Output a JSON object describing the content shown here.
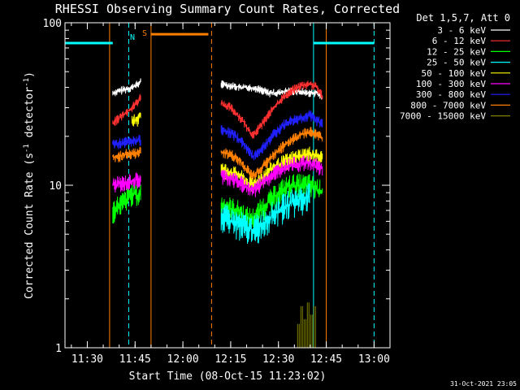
{
  "chart_data": {
    "type": "line",
    "title": "RHESSI Observing Summary Count Rates, Corrected",
    "xlabel": "Start Time (08-Oct-15 11:23:02)",
    "ylabel": "Corrected Count Rate (s⁻¹ detector⁻¹)",
    "ylabel_main": "Corrected Count Rate (s",
    "ylabel_sup1": "-1",
    "ylabel_mid": " detector",
    "ylabel_sup2": "-1",
    "ylabel_end": ")",
    "yscale": "log",
    "ylim": [
      1,
      100
    ],
    "xlim": [
      "11:23",
      "13:05"
    ],
    "xticks": [
      "11:30",
      "11:45",
      "12:00",
      "12:15",
      "12:30",
      "12:45",
      "13:00"
    ],
    "yticks": [
      "1",
      "10",
      "100"
    ],
    "legend_title": "Det 1,5,7, Att 0",
    "legend_position": "top-right",
    "timestamp": "31-Oct-2021 23:05",
    "series": [
      {
        "name": "3 - 6 keV",
        "color": "#ffffff",
        "segments": [
          {
            "x": [
              "11:38",
              "11:40",
              "11:42",
              "11:44",
              "11:46",
              "11:47"
            ],
            "y": [
              37,
              38,
              39,
              40,
              42,
              44
            ]
          },
          {
            "x": [
              "12:12",
              "12:15",
              "12:18",
              "12:21",
              "12:24",
              "12:27",
              "12:30",
              "12:33",
              "12:36",
              "12:39",
              "12:42",
              "12:44"
            ],
            "y": [
              42,
              41,
              40,
              40,
              39,
              37,
              37,
              38,
              38,
              37,
              37,
              34
            ]
          }
        ]
      },
      {
        "name": "6 - 12 keV",
        "color": "#ff3030",
        "segments": [
          {
            "x": [
              "11:38",
              "11:40",
              "11:42",
              "11:44",
              "11:46",
              "11:47"
            ],
            "y": [
              24,
              26,
              28,
              30,
              33,
              36
            ]
          },
          {
            "x": [
              "12:12",
              "12:15",
              "12:18",
              "12:20",
              "12:22",
              "12:25",
              "12:28",
              "12:31",
              "12:34",
              "12:37",
              "12:40",
              "12:42",
              "12:44"
            ],
            "y": [
              32,
              30,
              26,
              23,
              20,
              24,
              29,
              34,
              38,
              41,
              42,
              40,
              35
            ]
          }
        ]
      },
      {
        "name": "12 - 25 keV",
        "color": "#00ff00",
        "segments": [
          {
            "x": [
              "11:38",
              "11:40",
              "11:42",
              "11:44",
              "11:46",
              "11:47"
            ],
            "y": [
              7,
              7.5,
              8,
              9,
              8.5,
              9
            ]
          },
          {
            "x": [
              "12:12",
              "12:15",
              "12:18",
              "12:20",
              "12:22",
              "12:25",
              "12:28",
              "12:31",
              "12:34",
              "12:37",
              "12:40",
              "12:42",
              "12:44"
            ],
            "y": [
              7.5,
              7.2,
              6.8,
              6.3,
              6.2,
              7.2,
              8.2,
              9.3,
              10,
              10,
              10,
              9.5,
              9
            ]
          }
        ]
      },
      {
        "name": "25 - 50 keV",
        "color": "#00ffff",
        "segments": [
          {
            "x": [
              "12:12",
              "12:15",
              "12:18",
              "12:20",
              "12:22",
              "12:25",
              "12:28",
              "12:31",
              "12:34",
              "12:37",
              "12:40"
            ],
            "y": [
              6.5,
              6,
              5.7,
              5.5,
              5.3,
              5.8,
              6.5,
              7.2,
              7.8,
              8.2,
              8.5
            ]
          }
        ]
      },
      {
        "name": "50 - 100 keV",
        "color": "#ffff00",
        "segments": [
          {
            "x": [
              "11:44",
              "11:46",
              "11:47"
            ],
            "y": [
              24,
              26,
              28
            ]
          },
          {
            "x": [
              "12:12",
              "12:15",
              "12:18",
              "12:20",
              "12:22",
              "12:25",
              "12:28",
              "12:31",
              "12:34",
              "12:37",
              "12:40",
              "12:42",
              "12:44"
            ],
            "y": [
              12.5,
              12,
              11.3,
              10.4,
              10,
              11.2,
              12.6,
              13.6,
              14.5,
              15.2,
              15.6,
              15,
              14.6
            ]
          }
        ]
      },
      {
        "name": "100 - 300 keV",
        "color": "#ff00ff",
        "segments": [
          {
            "x": [
              "11:38",
              "11:40",
              "11:42",
              "11:44",
              "11:46",
              "11:47"
            ],
            "y": [
              10,
              10.2,
              10.4,
              10.6,
              10.8,
              11
            ]
          },
          {
            "x": [
              "12:12",
              "12:15",
              "12:18",
              "12:20",
              "12:22",
              "12:25",
              "12:28",
              "12:31",
              "12:34",
              "12:37",
              "12:40",
              "12:42",
              "12:44"
            ],
            "y": [
              11.5,
              11,
              10.4,
              9.6,
              9.3,
              10.4,
              11.6,
              12.7,
              13.3,
              13.6,
              13.6,
              13.1,
              12.6
            ]
          }
        ]
      },
      {
        "name": "300 - 800 keV",
        "color": "#2020ff",
        "segments": [
          {
            "x": [
              "11:38",
              "11:40",
              "11:42",
              "11:44",
              "11:46",
              "11:47"
            ],
            "y": [
              18,
              18,
              18.5,
              18.5,
              19,
              19
            ]
          },
          {
            "x": [
              "12:12",
              "12:15",
              "12:18",
              "12:20",
              "12:22",
              "12:25",
              "12:28",
              "12:31",
              "12:34",
              "12:37",
              "12:40",
              "12:42",
              "12:44"
            ],
            "y": [
              22,
              21,
              19,
              17,
              15,
              17,
              20,
              23,
              25,
              26,
              27,
              25,
              24
            ]
          }
        ]
      },
      {
        "name": "800 - 7000 keV",
        "color": "#ff8000",
        "segments": [
          {
            "x": [
              "11:38",
              "11:40",
              "11:42",
              "11:44",
              "11:46",
              "11:47"
            ],
            "y": [
              15,
              15,
              15.5,
              15.5,
              16,
              16
            ]
          },
          {
            "x": [
              "12:12",
              "12:15",
              "12:18",
              "12:20",
              "12:22",
              "12:25",
              "12:28",
              "12:31",
              "12:34",
              "12:37",
              "12:40",
              "12:42",
              "12:44"
            ],
            "y": [
              16,
              15.5,
              14,
              12.5,
              11.5,
              13,
              15,
              17,
              19,
              20.5,
              21.5,
              20.5,
              19.5
            ]
          }
        ]
      },
      {
        "name": "7000 - 15000 keV",
        "color": "#808000",
        "segments": [
          {
            "x": [
              "12:36",
              "12:37",
              "12:38",
              "12:39",
              "12:40",
              "12:41",
              "12:42"
            ],
            "y": [
              1.4,
              1.8,
              1.5,
              1.9,
              1.6,
              1.8,
              1.4
            ]
          }
        ]
      }
    ],
    "annotations": [
      {
        "label": "N",
        "color": "#00ffff"
      },
      {
        "label": "S",
        "color": "#ff8000"
      }
    ],
    "flag_bars": [
      {
        "color": "#00ffff",
        "x": [
          "11:23",
          "11:38"
        ],
        "y": 75
      },
      {
        "color": "#00ffff",
        "x": [
          "12:41",
          "13:00"
        ],
        "y": 75
      },
      {
        "color": "#ff8000",
        "x": [
          "11:50",
          "12:08"
        ],
        "y": 85
      }
    ],
    "vlines": [
      {
        "color": "#00ffff",
        "style": "dash",
        "x": "11:43"
      },
      {
        "color": "#00ffff",
        "style": "solid",
        "x": "12:41"
      },
      {
        "color": "#00ffff",
        "style": "dash",
        "x": "13:00"
      },
      {
        "color": "#ff8000",
        "style": "solid",
        "x": "11:37"
      },
      {
        "color": "#ff8000",
        "style": "solid",
        "x": "11:50"
      },
      {
        "color": "#ff8000",
        "style": "dash",
        "x": "12:09"
      },
      {
        "color": "#ff8000",
        "style": "solid",
        "x": "12:45"
      },
      {
        "color": "#00ffff",
        "style": "solid",
        "x": "11:23"
      }
    ]
  }
}
